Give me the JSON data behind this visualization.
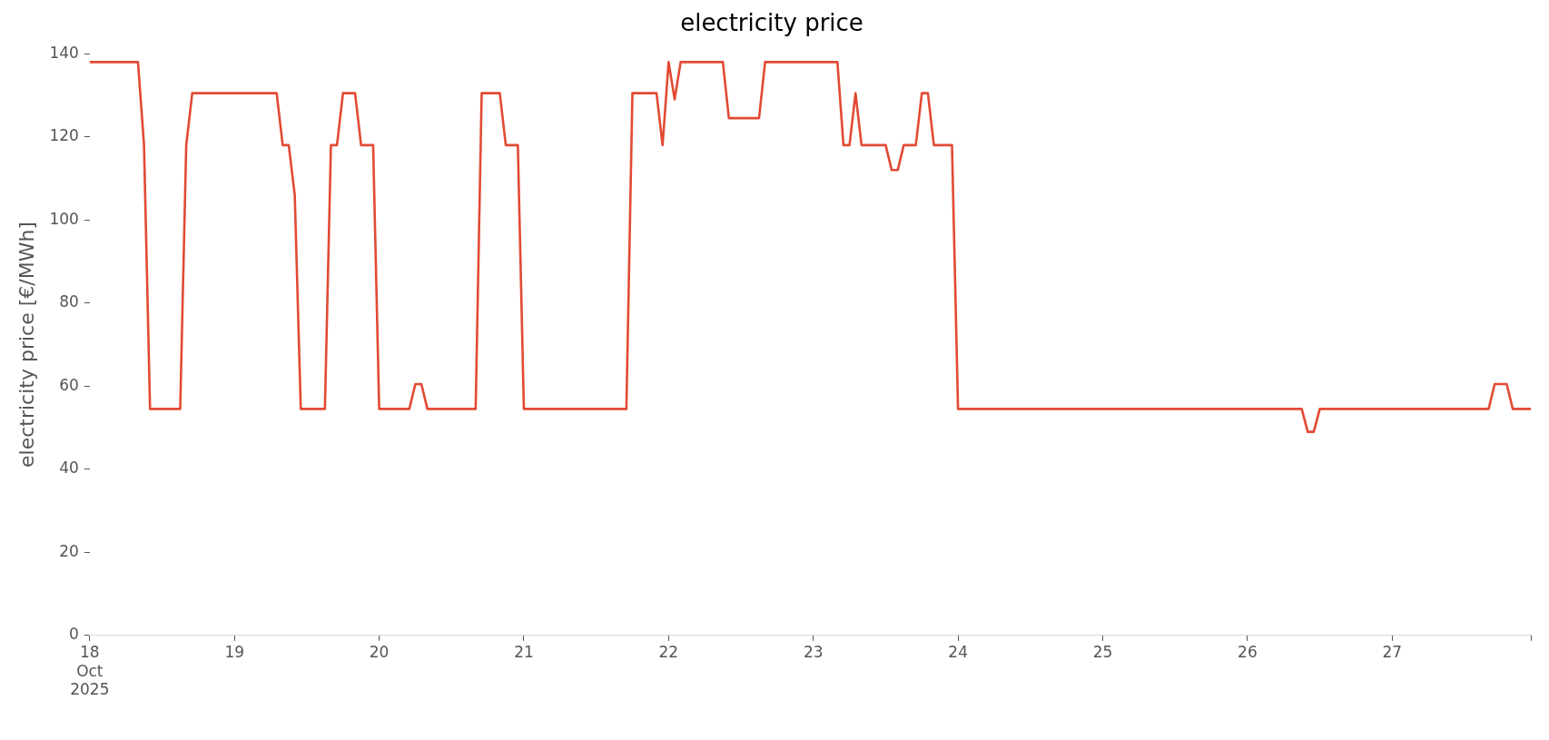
{
  "chart_data": {
    "type": "line",
    "title": "electricity price",
    "ylabel": "electricity price [€/MWh]",
    "x": [
      "2025-10-18T00:00",
      "2025-10-18T08:00",
      "2025-10-18T09:00",
      "2025-10-18T10:00",
      "2025-10-18T15:00",
      "2025-10-18T16:00",
      "2025-10-18T17:00",
      "2025-10-19T07:00",
      "2025-10-19T08:00",
      "2025-10-19T09:00",
      "2025-10-19T10:00",
      "2025-10-19T11:00",
      "2025-10-19T15:00",
      "2025-10-19T16:00",
      "2025-10-19T17:00",
      "2025-10-19T18:00",
      "2025-10-19T20:00",
      "2025-10-19T21:00",
      "2025-10-19T23:00",
      "2025-10-20T00:00",
      "2025-10-20T05:00",
      "2025-10-20T06:00",
      "2025-10-20T07:00",
      "2025-10-20T08:00",
      "2025-10-20T16:00",
      "2025-10-20T17:00",
      "2025-10-20T20:00",
      "2025-10-20T21:00",
      "2025-10-20T23:00",
      "2025-10-21T00:00",
      "2025-10-21T17:00",
      "2025-10-21T18:00",
      "2025-10-21T22:00",
      "2025-10-21T23:00",
      "2025-10-22T00:00",
      "2025-10-22T01:00",
      "2025-10-22T02:00",
      "2025-10-22T09:00",
      "2025-10-22T10:00",
      "2025-10-22T15:00",
      "2025-10-22T16:00",
      "2025-10-23T04:00",
      "2025-10-23T05:00",
      "2025-10-23T06:00",
      "2025-10-23T07:00",
      "2025-10-23T08:00",
      "2025-10-23T12:00",
      "2025-10-23T13:00",
      "2025-10-23T14:00",
      "2025-10-23T15:00",
      "2025-10-23T17:00",
      "2025-10-23T18:00",
      "2025-10-23T19:00",
      "2025-10-23T20:00",
      "2025-10-23T23:00",
      "2025-10-24T00:00",
      "2025-10-26T09:00",
      "2025-10-26T10:00",
      "2025-10-26T11:00",
      "2025-10-26T12:00",
      "2025-10-27T16:00",
      "2025-10-27T17:00",
      "2025-10-27T19:00",
      "2025-10-27T20:00",
      "2025-10-27T23:00"
    ],
    "series": [
      {
        "color": "#e24a33",
        "values": [
          138,
          138,
          118,
          54.5,
          54.5,
          118,
          130.5,
          130.5,
          118,
          118,
          106,
          54.5,
          54.5,
          118,
          118,
          130.5,
          130.5,
          118,
          118,
          54.5,
          54.5,
          60.5,
          60.5,
          54.5,
          54.5,
          130.5,
          130.5,
          118,
          118,
          54.5,
          54.5,
          130.5,
          130.5,
          118,
          138,
          129,
          138,
          138,
          124.5,
          124.5,
          138,
          138,
          118,
          118,
          130.5,
          118,
          118,
          112,
          112,
          118,
          118,
          130.5,
          130.5,
          118,
          118,
          54.5,
          54.5,
          49,
          49,
          54.5,
          54.5,
          60.5,
          60.5,
          54.5,
          54.5
        ]
      }
    ],
    "xticks": [
      {
        "value": "2025-10-18",
        "label": "18\nOct\n2025"
      },
      {
        "value": "2025-10-19",
        "label": "19"
      },
      {
        "value": "2025-10-20",
        "label": "20"
      },
      {
        "value": "2025-10-21",
        "label": "21"
      },
      {
        "value": "2025-10-22",
        "label": "22"
      },
      {
        "value": "2025-10-23",
        "label": "23"
      },
      {
        "value": "2025-10-24",
        "label": "24"
      },
      {
        "value": "2025-10-25",
        "label": "25"
      },
      {
        "value": "2025-10-26",
        "label": "26"
      },
      {
        "value": "2025-10-27",
        "label": "27"
      },
      {
        "value": "2025-10-27T23:00",
        "label": null
      }
    ],
    "xlim": [
      "2025-10-18T00:00",
      "2025-10-27T23:00"
    ],
    "ylim": [
      0,
      140
    ],
    "yticks": [
      0,
      20,
      40,
      60,
      80,
      100,
      120,
      140
    ],
    "legend": false,
    "marker": "none",
    "line_style": "solid"
  }
}
